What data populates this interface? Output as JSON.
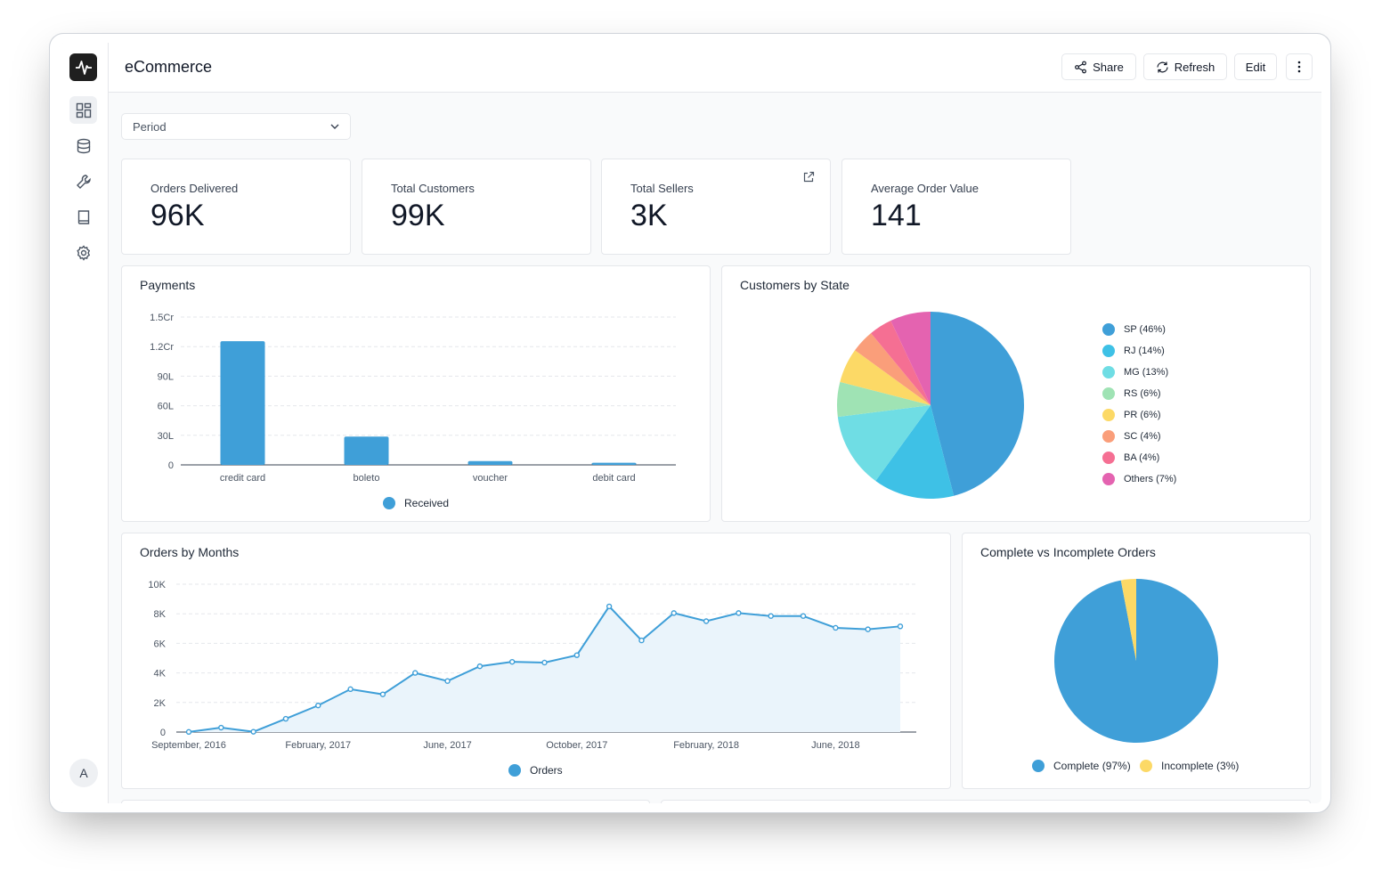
{
  "app": {
    "title": "eCommerce",
    "avatar_initial": "A"
  },
  "toolbar": {
    "share_label": "Share",
    "refresh_label": "Refresh",
    "edit_label": "Edit"
  },
  "sidebar": {
    "items": [
      {
        "name": "dashboard-icon",
        "active": true
      },
      {
        "name": "database-icon",
        "active": false
      },
      {
        "name": "wrench-icon",
        "active": false
      },
      {
        "name": "book-icon",
        "active": false
      },
      {
        "name": "gear-icon",
        "active": false
      }
    ]
  },
  "filters": {
    "period_label": "Period"
  },
  "kpis": [
    {
      "label": "Orders Delivered",
      "value": "96K"
    },
    {
      "label": "Total Customers",
      "value": "99K"
    },
    {
      "label": "Total Sellers",
      "value": "3K"
    },
    {
      "label": "Average Order Value",
      "value": "141"
    }
  ],
  "colors": {
    "accent": "#3f9fd8",
    "grid": "#e5e7eb"
  },
  "chart_data": [
    {
      "id": "payments",
      "type": "bar",
      "title": "Payments",
      "categories": [
        "credit card",
        "boleto",
        "voucher",
        "debit card"
      ],
      "series": [
        {
          "name": "Received",
          "color": "#3f9fd8",
          "values": [
            12550000,
            2870000,
            380000,
            220000
          ]
        }
      ],
      "y_ticks": [
        "0",
        "30L",
        "60L",
        "90L",
        "1.2Cr",
        "1.5Cr"
      ],
      "ylim": [
        0,
        15000000
      ],
      "legend": "bottom"
    },
    {
      "id": "customers_by_state",
      "type": "pie",
      "title": "Customers by State",
      "slices": [
        {
          "label": "SP (46%)",
          "value": 46,
          "color": "#3f9fd8"
        },
        {
          "label": "RJ (14%)",
          "value": 14,
          "color": "#3ec1e6"
        },
        {
          "label": "MG (13%)",
          "value": 13,
          "color": "#6fdde4"
        },
        {
          "label": "RS (6%)",
          "value": 6,
          "color": "#9fe3b4"
        },
        {
          "label": "PR (6%)",
          "value": 6,
          "color": "#fcd966"
        },
        {
          "label": "SC (4%)",
          "value": 4,
          "color": "#fa9e7a"
        },
        {
          "label": "BA (4%)",
          "value": 4,
          "color": "#f56f93"
        },
        {
          "label": "Others (7%)",
          "value": 7,
          "color": "#e463b0"
        }
      ],
      "legend": "right"
    },
    {
      "id": "orders_by_months",
      "type": "area",
      "title": "Orders by Months",
      "x": [
        "2016-09",
        "2016-10",
        "2016-12",
        "2017-01",
        "2017-02",
        "2017-03",
        "2017-04",
        "2017-05",
        "2017-06",
        "2017-07",
        "2017-08",
        "2017-09",
        "2017-10",
        "2017-11",
        "2017-12",
        "2018-01",
        "2018-02",
        "2018-03",
        "2018-04",
        "2018-05",
        "2018-06",
        "2018-07",
        "2018-08"
      ],
      "series": [
        {
          "name": "Orders",
          "color": "#3f9fd8",
          "values": [
            10,
            300,
            20,
            900,
            1800,
            2900,
            2550,
            4000,
            3450,
            4450,
            4750,
            4700,
            5200,
            8500,
            6200,
            8050,
            7500,
            8050,
            7850,
            7850,
            7050,
            6950,
            7150
          ]
        }
      ],
      "x_tick_labels": [
        "September, 2016",
        "February, 2017",
        "June, 2017",
        "October, 2017",
        "February, 2018",
        "June, 2018"
      ],
      "x_tick_indices": [
        0,
        4,
        8,
        12,
        16,
        20
      ],
      "y_ticks": [
        "0",
        "2K",
        "4K",
        "6K",
        "8K",
        "10K"
      ],
      "ylim": [
        0,
        10000
      ],
      "legend": "bottom"
    },
    {
      "id": "complete_vs_incomplete",
      "type": "pie",
      "title": "Complete vs Incomplete Orders",
      "slices": [
        {
          "label": "Complete (97%)",
          "value": 97,
          "color": "#3f9fd8"
        },
        {
          "label": "Incomplete (3%)",
          "value": 3,
          "color": "#fcd966"
        }
      ],
      "legend": "bottom"
    }
  ]
}
